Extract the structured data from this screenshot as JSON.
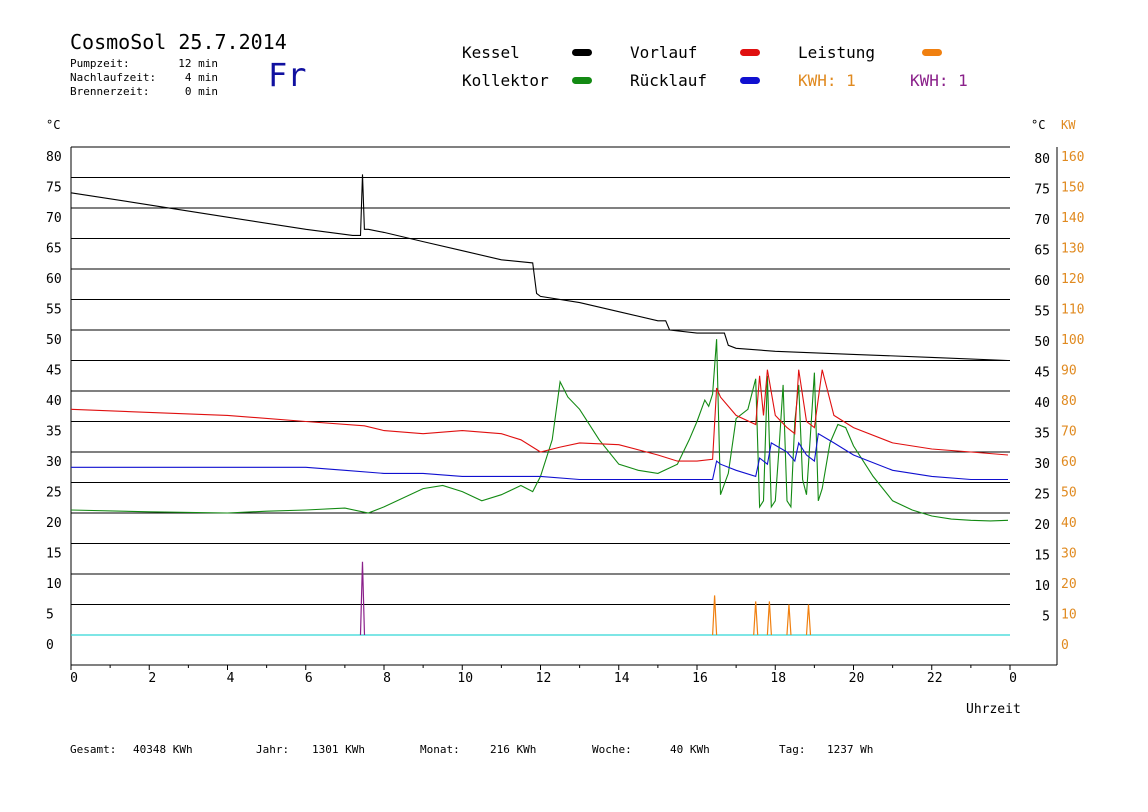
{
  "header": {
    "title": "CosmoSol 25.7.2014",
    "day": "Fr",
    "info": [
      {
        "label": "Pumpzeit:",
        "value": "12 min"
      },
      {
        "label": "Nachlaufzeit:",
        "value": "4 min"
      },
      {
        "label": "Brennerzeit:",
        "value": "0 min"
      }
    ]
  },
  "legend": {
    "kessel": {
      "label": "Kessel",
      "color": "#000000"
    },
    "kollektor": {
      "label": "Kollektor",
      "color": "#138a13"
    },
    "vorlauf": {
      "label": "Vorlauf",
      "color": "#e01010"
    },
    "ruecklauf": {
      "label": "Rücklauf",
      "color": "#1010d0"
    },
    "leistung": {
      "label": "Leistung",
      "color": "#f08010"
    },
    "kwh_orange": "KWH: 1",
    "kwh_purple": "KWH: 1",
    "kwh_orange_color": "#e08a20",
    "kwh_purple_color": "#8a208a"
  },
  "axes": {
    "left_unit": "°C",
    "right_unit": "°C",
    "right_unit2": "KW",
    "xlabel": "Uhrzeit"
  },
  "footer": {
    "gesamt_label": "Gesamt:",
    "gesamt_value": "40348 KWh",
    "jahr_label": "Jahr:",
    "jahr_value": "1301 KWh",
    "monat_label": "Monat:",
    "monat_value": "216 KWh",
    "woche_label": "Woche:",
    "woche_value": "40 KWh",
    "tag_label": "Tag:",
    "tag_value": "1237 Wh"
  },
  "chart_data": {
    "type": "line",
    "xlabel": "Uhrzeit",
    "ylabel": "°C",
    "xlim": [
      0,
      24
    ],
    "ylim": [
      -5,
      80
    ],
    "x_ticks": [
      "0",
      "2",
      "4",
      "6",
      "8",
      "10",
      "12",
      "14",
      "16",
      "18",
      "20",
      "22",
      "0"
    ],
    "y_ticks_left": [
      "80",
      "75",
      "70",
      "65",
      "60",
      "55",
      "50",
      "45",
      "40",
      "35",
      "30",
      "25",
      "20",
      "15",
      "10",
      "5",
      "0"
    ],
    "y_ticks_right": [
      "80",
      "75",
      "70",
      "65",
      "60",
      "55",
      "50",
      "45",
      "40",
      "35",
      "30",
      "25",
      "20",
      "15",
      "10",
      "5"
    ],
    "y2_ticks": [
      "160",
      "150",
      "140",
      "130",
      "120",
      "110",
      "100",
      "90",
      "80",
      "70",
      "60",
      "50",
      "40",
      "30",
      "20",
      "10",
      "0"
    ],
    "grid": true,
    "series": [
      {
        "name": "Kessel",
        "color": "#000000",
        "x": [
          0,
          2,
          4,
          6,
          7.2,
          7.4,
          7.45,
          7.5,
          7.6,
          8,
          9,
          10,
          11,
          11.8,
          11.9,
          12,
          13,
          14,
          15,
          15.2,
          15.3,
          16,
          16.5,
          16.7,
          16.8,
          17,
          18,
          20,
          22,
          23.95
        ],
        "y": [
          72.5,
          70.5,
          68.5,
          66.5,
          65.5,
          65.5,
          75.5,
          66.5,
          66.5,
          66,
          64.5,
          63,
          61.5,
          61,
          56,
          55.5,
          54.5,
          53,
          51.5,
          51.5,
          50,
          49.5,
          49.5,
          49.5,
          47.5,
          47,
          46.5,
          46,
          45.5,
          45
        ]
      },
      {
        "name": "Kollektor",
        "color": "#138a13",
        "x": [
          0,
          2,
          4,
          5,
          6,
          7,
          7.6,
          8,
          9,
          9.5,
          10,
          10.5,
          11,
          11.5,
          11.8,
          12,
          12.3,
          12.5,
          12.7,
          13,
          13.5,
          14,
          14.5,
          15,
          15.5,
          15.8,
          16,
          16.2,
          16.3,
          16.4,
          16.5,
          16.6,
          16.8,
          17,
          17.3,
          17.5,
          17.6,
          17.7,
          17.8,
          17.9,
          18,
          18.1,
          18.2,
          18.3,
          18.4,
          18.5,
          18.6,
          18.7,
          18.8,
          18.9,
          19,
          19.1,
          19.2,
          19.4,
          19.6,
          19.8,
          20,
          20.5,
          21,
          21.5,
          22,
          22.5,
          23,
          23.5,
          23.95
        ],
        "y": [
          20.5,
          20.2,
          20,
          20.3,
          20.5,
          20.8,
          20,
          21,
          24,
          24.5,
          23.5,
          22,
          23,
          24.5,
          23.5,
          26,
          32,
          41.5,
          39,
          37,
          32,
          28,
          27,
          26.5,
          28,
          32,
          35,
          38.5,
          37.5,
          39.5,
          48.5,
          23,
          26.5,
          35.5,
          37,
          42,
          21,
          22,
          42.5,
          21,
          22,
          31,
          41,
          22,
          21,
          35,
          41,
          25.5,
          23,
          33,
          43,
          22,
          24,
          31.5,
          34.5,
          34,
          31,
          26,
          22,
          20.5,
          19.5,
          19,
          18.8,
          18.7,
          18.8
        ]
      },
      {
        "name": "Vorlauf",
        "color": "#e01010",
        "x": [
          0,
          2,
          4,
          6,
          7.5,
          8,
          9,
          10,
          11,
          11.5,
          12,
          12.5,
          13,
          14,
          15,
          15.5,
          16,
          16.4,
          16.5,
          16.6,
          17,
          17.5,
          17.6,
          17.7,
          17.8,
          18,
          18.3,
          18.5,
          18.6,
          18.8,
          19,
          19.2,
          19.5,
          20,
          21,
          22,
          23,
          23.95
        ],
        "y": [
          37,
          36.5,
          36,
          35,
          34.3,
          33.5,
          33,
          33.5,
          33,
          32,
          30,
          30.8,
          31.5,
          31.2,
          29.5,
          28.5,
          28.5,
          28.8,
          40.5,
          39,
          36,
          34.5,
          42.5,
          36,
          43.5,
          36,
          34,
          33,
          43.5,
          35,
          34,
          43.5,
          36,
          34,
          31.5,
          30.5,
          30,
          29.5
        ]
      },
      {
        "name": "Rücklauf",
        "color": "#1010d0",
        "x": [
          0,
          2,
          4,
          6,
          7,
          8,
          9,
          10,
          11,
          12,
          13,
          14,
          15,
          16,
          16.4,
          16.5,
          16.6,
          17,
          17.5,
          17.6,
          17.7,
          17.8,
          17.9,
          18.3,
          18.5,
          18.6,
          18.8,
          19,
          19.1,
          19.5,
          20,
          21,
          22,
          23,
          23.95
        ],
        "y": [
          27.5,
          27.5,
          27.5,
          27.5,
          27,
          26.5,
          26.5,
          26,
          26,
          26,
          25.5,
          25.5,
          25.5,
          25.5,
          25.5,
          28.5,
          28,
          27,
          26,
          29,
          28.5,
          28,
          31.5,
          30,
          28.5,
          31.5,
          29.5,
          28.5,
          33,
          31.5,
          29.5,
          27,
          26,
          25.5,
          25.5
        ]
      }
    ],
    "spikes": [
      {
        "name": "KWH purple",
        "color": "#8a208a",
        "x": [
          7.45
        ],
        "y": [
          12
        ]
      },
      {
        "name": "Leistung",
        "color": "#f08010",
        "x": [
          16.45,
          17.5,
          17.85,
          18.35,
          18.85
        ],
        "y": [
          6.5,
          5.5,
          5.5,
          5,
          5
        ]
      }
    ],
    "baseline": {
      "color": "#30d8d8",
      "y": 0
    }
  }
}
